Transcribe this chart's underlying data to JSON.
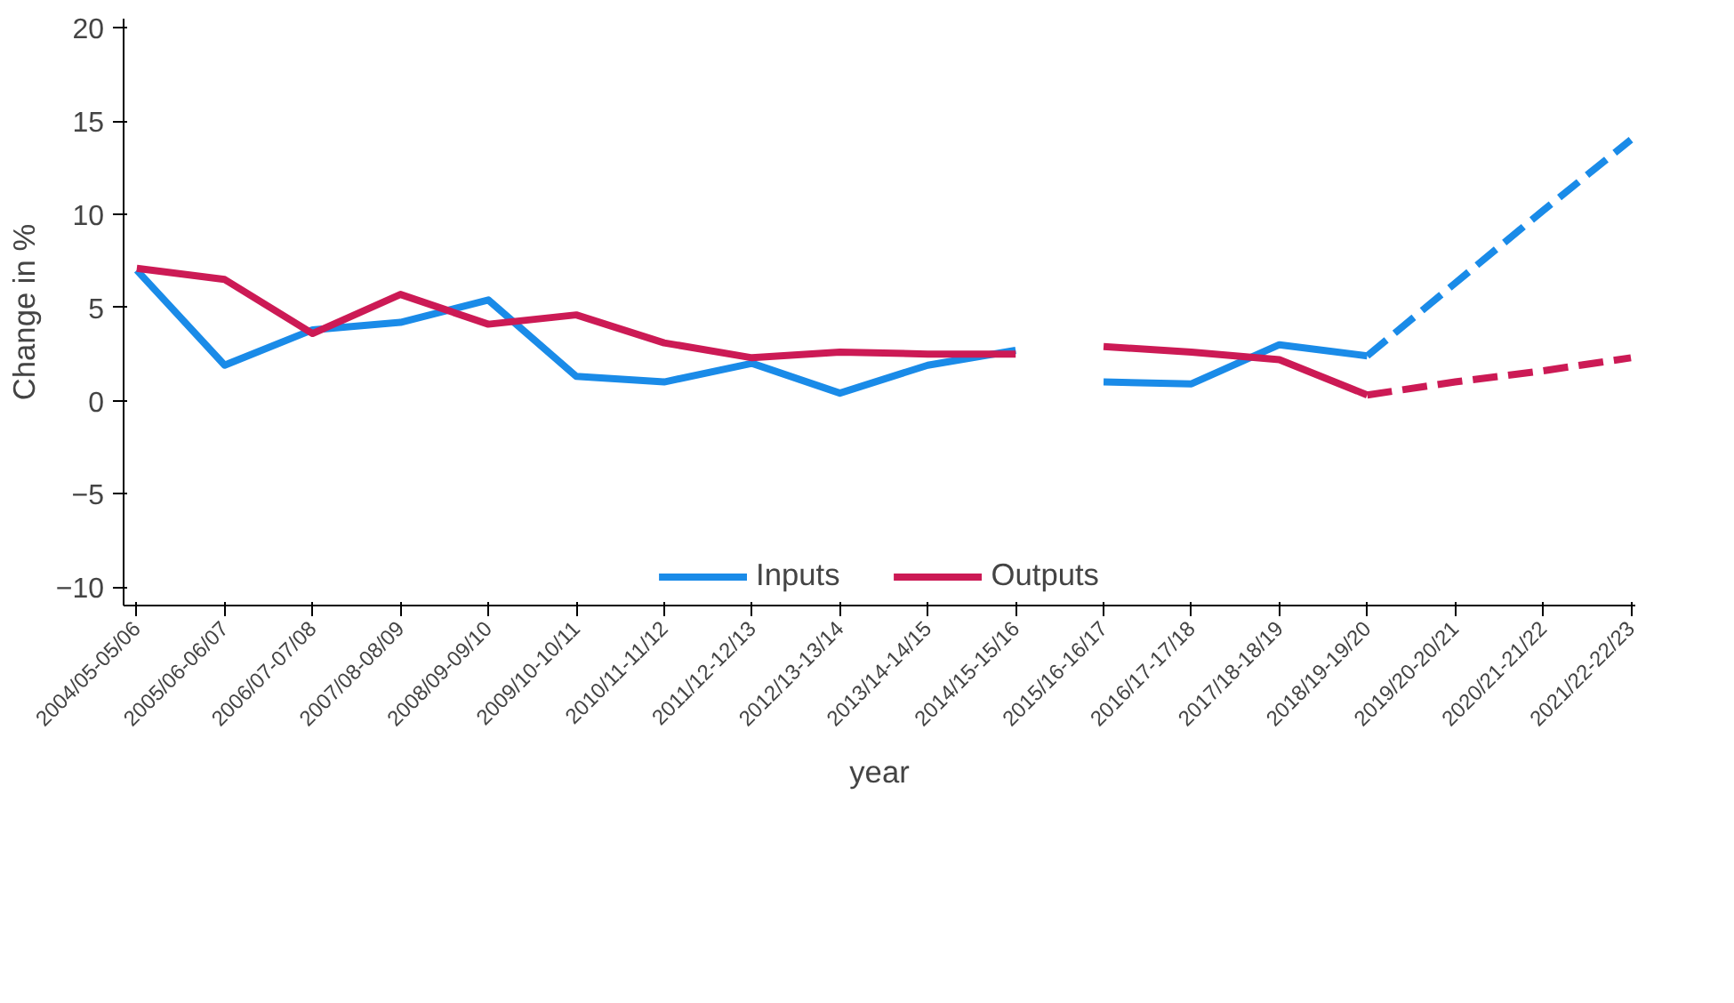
{
  "chart_data": {
    "type": "line",
    "xlabel": "year",
    "ylabel": "Change in %",
    "categories": [
      "2004/05-05/06",
      "2005/06-06/07",
      "2006/07-07/08",
      "2007/08-08/09",
      "2008/09-09/10",
      "2009/10-10/11",
      "2010/11-11/12",
      "2011/12-12/13",
      "2012/13-13/14",
      "2013/14-14/15",
      "2014/15-15/16",
      "2015/16-16/17",
      "2016/17-17/18",
      "2017/18-18/19",
      "2018/19-19/20",
      "2019/20-20/21",
      "2020/21-21/22",
      "2021/22-22/23"
    ],
    "series": [
      {
        "name": "Inputs",
        "color": "#1a8be8",
        "line_style": "solid",
        "values": [
          7.0,
          1.9,
          3.8,
          4.2,
          5.4,
          1.3,
          1.0,
          2.0,
          0.4,
          1.9,
          2.7,
          null,
          null,
          null,
          null,
          null,
          null,
          null
        ]
      },
      {
        "color": "#1a8be8",
        "line_style": "solid",
        "values": [
          null,
          null,
          null,
          null,
          null,
          null,
          null,
          null,
          null,
          null,
          null,
          1.0,
          0.9,
          3.0,
          2.4,
          null,
          null,
          null
        ]
      },
      {
        "color": "#1a8be8",
        "line_style": "dashed",
        "values": [
          null,
          null,
          null,
          null,
          null,
          null,
          null,
          null,
          null,
          null,
          null,
          null,
          null,
          null,
          2.4,
          6.3,
          10.2,
          14.0
        ]
      },
      {
        "name": "Outputs",
        "color": "#cc1a55",
        "line_style": "solid",
        "values": [
          7.1,
          6.5,
          3.6,
          5.7,
          4.1,
          4.6,
          3.1,
          2.3,
          2.6,
          2.5,
          2.5,
          null,
          null,
          null,
          null,
          null,
          null,
          null
        ]
      },
      {
        "color": "#cc1a55",
        "line_style": "solid",
        "values": [
          null,
          null,
          null,
          null,
          null,
          null,
          null,
          null,
          null,
          null,
          null,
          2.9,
          2.6,
          2.2,
          0.3,
          null,
          null,
          null
        ]
      },
      {
        "color": "#cc1a55",
        "line_style": "dashed",
        "values": [
          null,
          null,
          null,
          null,
          null,
          null,
          null,
          null,
          null,
          null,
          null,
          null,
          null,
          null,
          0.3,
          1.0,
          1.6,
          2.3
        ]
      }
    ],
    "ylim": [
      -11,
      20.5
    ],
    "yticks": [
      -10,
      -5,
      0,
      5,
      10,
      15,
      20
    ],
    "grid": false,
    "legend": "bottom"
  }
}
